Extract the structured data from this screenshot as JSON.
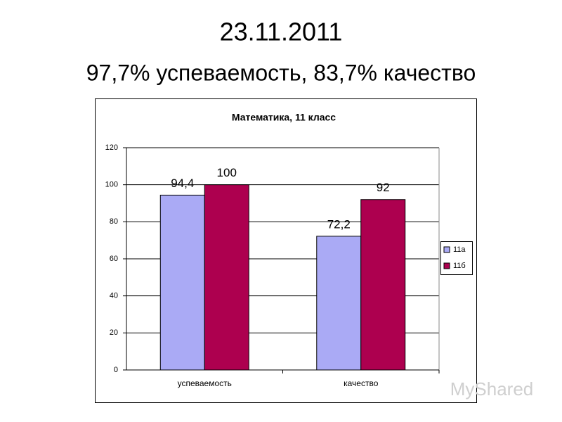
{
  "slide": {
    "title": "23.11.2011",
    "subtitle": "97,7% успеваемость, 83,7% качество"
  },
  "chart_data": {
    "type": "bar",
    "title": "Математика, 11 класс",
    "categories": [
      "успеваемость",
      "качество"
    ],
    "series": [
      {
        "name": "11а",
        "color": "#aaaaf5",
        "values": [
          94.4,
          72.2
        ],
        "value_labels": [
          "94,4",
          "72,2"
        ]
      },
      {
        "name": "11б",
        "color": "#ad004f",
        "values": [
          100,
          92
        ],
        "value_labels": [
          "100",
          "92"
        ]
      }
    ],
    "ylim": [
      0,
      120
    ],
    "yticks": [
      0,
      20,
      40,
      60,
      80,
      100,
      120
    ],
    "grid": true,
    "legend": "right"
  },
  "watermark": "MyShared"
}
